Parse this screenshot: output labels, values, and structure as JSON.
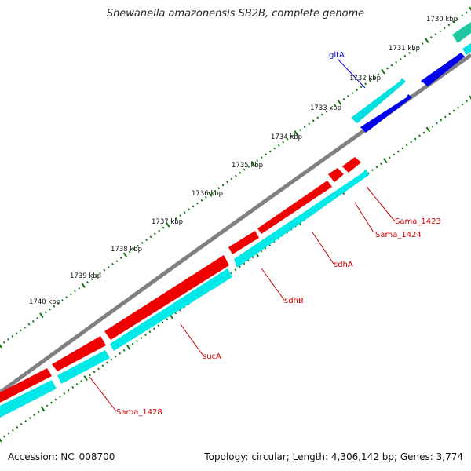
{
  "title": "Shewanella amazonensis SB2B, complete genome",
  "accession": "Accession: NC_008700",
  "summary": "Topology: circular; Length: 4,306,142 bp; Genes: 3,774",
  "colors": {
    "backbone": "#808080",
    "forward_cds": "#0000ee",
    "forward_gene": "#00e0e0",
    "reverse_cds": "#ee0000",
    "reverse_gene": "#00e8e8",
    "tick": "#117711",
    "teal_feature": "#20c8a0",
    "forward_label": "#0000cc",
    "reverse_label": "#cc0000"
  },
  "ticks": [
    {
      "label": "1730 kbp"
    },
    {
      "label": "1731 kbp"
    },
    {
      "label": "1732 kbp"
    },
    {
      "label": "1733 kbp"
    },
    {
      "label": "1734 kbp"
    },
    {
      "label": "1735 kbp"
    },
    {
      "label": "1736 kbp"
    },
    {
      "label": "1737 kbp"
    },
    {
      "label": "1738 kbp"
    },
    {
      "label": "1739 kbp"
    },
    {
      "label": "1740 kbp"
    }
  ],
  "genes": [
    {
      "name": "gltA",
      "strand": "forward"
    },
    {
      "name": "Sama_1423",
      "strand": "reverse"
    },
    {
      "name": "Sama_1424",
      "strand": "reverse"
    },
    {
      "name": "sdhA",
      "strand": "reverse"
    },
    {
      "name": "sdhB",
      "strand": "reverse"
    },
    {
      "name": "sucA",
      "strand": "reverse"
    },
    {
      "name": "Sama_1428",
      "strand": "reverse"
    }
  ]
}
